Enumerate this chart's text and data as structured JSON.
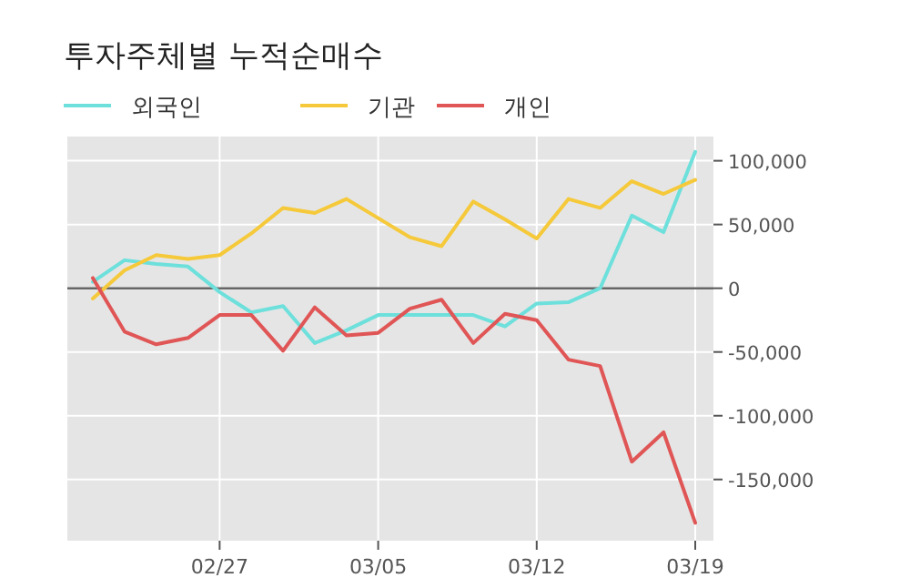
{
  "chart_data": {
    "type": "line",
    "title": "투자주체별 누적순매수",
    "categories": [
      null,
      null,
      null,
      null,
      "02/27",
      null,
      null,
      null,
      null,
      "03/05",
      null,
      null,
      null,
      null,
      "03/12",
      null,
      null,
      null,
      null,
      "03/19"
    ],
    "series": [
      {
        "name": "외국인",
        "color": "#6ee0dc",
        "values": [
          5000,
          22000,
          19000,
          17000,
          -3000,
          -19000,
          -14000,
          -43000,
          -33000,
          -21000,
          -21000,
          -21000,
          -21000,
          -30000,
          -12000,
          -11000,
          0,
          57000,
          44000,
          107000
        ]
      },
      {
        "name": "기관",
        "color": "#f5c93a",
        "values": [
          -8000,
          14000,
          26000,
          23000,
          26000,
          43000,
          63000,
          59000,
          70000,
          55000,
          40000,
          33000,
          68000,
          54000,
          39000,
          70000,
          63000,
          84000,
          74000,
          85000
        ]
      },
      {
        "name": "개인",
        "color": "#e05555",
        "values": [
          8000,
          -34000,
          -44000,
          -39000,
          -21000,
          -21000,
          -49000,
          -15000,
          -37000,
          -35000,
          -16000,
          -9000,
          -43000,
          -20000,
          -25000,
          -56000,
          -61000,
          -136000,
          -113000,
          -184000
        ]
      }
    ],
    "ylim": [
      -198000,
      119000
    ],
    "yticks": [
      {
        "value": -150000,
        "label": "-150,000"
      },
      {
        "value": -100000,
        "label": "-100,000"
      },
      {
        "value": -50000,
        "label": "-50,000"
      },
      0,
      {
        "value": 50000,
        "label": "50,000"
      },
      {
        "value": 100000,
        "label": "100,000"
      }
    ],
    "ref_lines": [
      {
        "axis": "y",
        "value": 0,
        "color": "#666666"
      }
    ],
    "grid": true,
    "legend": "top left",
    "marker": "none",
    "line_style": "solid"
  }
}
